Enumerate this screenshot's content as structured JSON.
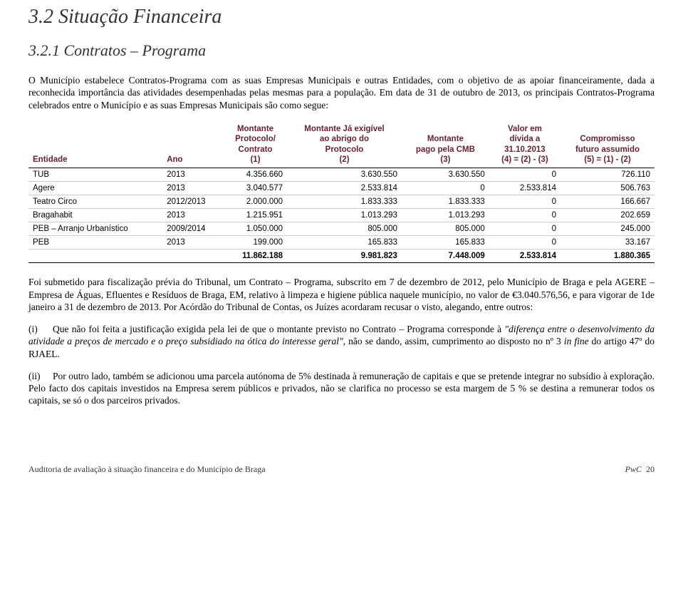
{
  "heading1": "3.2  Situação Financeira",
  "heading2": "3.2.1  Contratos – Programa",
  "intro": "O Município estabelece Contratos-Programa com as suas Empresas Municipais e outras Entidades, com o objetivo de as apoiar financeiramente, dada a reconhecida importância das atividades desempenhadas pelas mesmas para a população. Em data de 31 de outubro de 2013, os principais Contratos-Programa celebrados entre o Município e as suas Empresas Municipais são como segue:",
  "table": {
    "headers": {
      "c1": "Entidade",
      "c2": "Ano",
      "c3a": "Montante",
      "c3b": "Protocolo/",
      "c3c": "Contrato",
      "c3d": "(1)",
      "c4a": "Montante Já exigível",
      "c4b": "ao abrigo do",
      "c4c": "Protocolo",
      "c4d": "(2)",
      "c5a": "Montante",
      "c5b": "pago pela CMB",
      "c5c": "(3)",
      "c6a": "Valor em",
      "c6b": "dívida a",
      "c6c": "31.10.2013",
      "c6d": "(4) = (2) - (3)",
      "c7a": "Compromisso",
      "c7b": "futuro assumido",
      "c7c": "(5) = (1) - (2)"
    },
    "rows": [
      {
        "entidade": "TUB",
        "ano": "2013",
        "c3": "4.356.660",
        "c4": "3.630.550",
        "c5": "3.630.550",
        "c6": "0",
        "c7": "726.110"
      },
      {
        "entidade": "Agere",
        "ano": "2013",
        "c3": "3.040.577",
        "c4": "2.533.814",
        "c5": "0",
        "c6": "2.533.814",
        "c7": "506.763"
      },
      {
        "entidade": "Teatro Circo",
        "ano": "2012/2013",
        "c3": "2.000.000",
        "c4": "1.833.333",
        "c5": "1.833.333",
        "c6": "0",
        "c7": "166.667"
      },
      {
        "entidade": "Bragahabit",
        "ano": "2013",
        "c3": "1.215.951",
        "c4": "1.013.293",
        "c5": "1.013.293",
        "c6": "0",
        "c7": "202.659"
      },
      {
        "entidade": "PEB – Arranjo Urbanístico",
        "ano": "2009/2014",
        "c3": "1.050.000",
        "c4": "805.000",
        "c5": "805.000",
        "c6": "0",
        "c7": "245.000"
      },
      {
        "entidade": "PEB",
        "ano": "2013",
        "c3": "199.000",
        "c4": "165.833",
        "c5": "165.833",
        "c6": "0",
        "c7": "33.167"
      }
    ],
    "total": {
      "c3": "11.862.188",
      "c4": "9.981.823",
      "c5": "7.448.009",
      "c6": "2.533.814",
      "c7": "1.880.365"
    }
  },
  "para2": "Foi submetido para fiscalização prévia do Tribunal, um Contrato – Programa, subscrito em 7 de dezembro de 2012, pelo Município de Braga e pela AGERE – Empresa de Águas, Efluentes e Resíduos de Braga, EM, relativo à limpeza e higiene pública naquele município, no valor de €3.040.576,56, e para vigorar de 1de janeiro a 31 de dezembro de 2013. Por Acórdão do Tribunal de Contas, os Juízes acordaram recusar o visto, alegando, entre outros:",
  "item_i_lead": "(i)",
  "item_i_a": "Que não foi feita a justificação exigida pela lei de que o montante previsto no Contrato – Programa corresponde à ",
  "item_i_quote": "\"diferença entre o desenvolvimento da atividade a preços de mercado e o preço subsidiado na ótica do interesse geral\"",
  "item_i_b": ", não se dando, assim, cumprimento ao disposto no nº 3 ",
  "item_i_infine": "in fine",
  "item_i_c": " do artigo 47º do RJAEL.",
  "item_ii_lead": "(ii)",
  "item_ii": "Por outro lado, também se adicionou uma parcela autónoma de 5% destinada à remuneração de capitais e que se pretende integrar no subsídio à exploração. Pelo facto dos capitais investidos na Empresa serem públicos e privados, não se clarifica no processo se esta margem de 5 % se destina a remunerar todos os capitais, se só o dos parceiros privados.",
  "footer_left": "Auditoria de avaliação à situação financeira e do Município de Braga",
  "footer_right_a": "PwC",
  "footer_right_b": "20"
}
